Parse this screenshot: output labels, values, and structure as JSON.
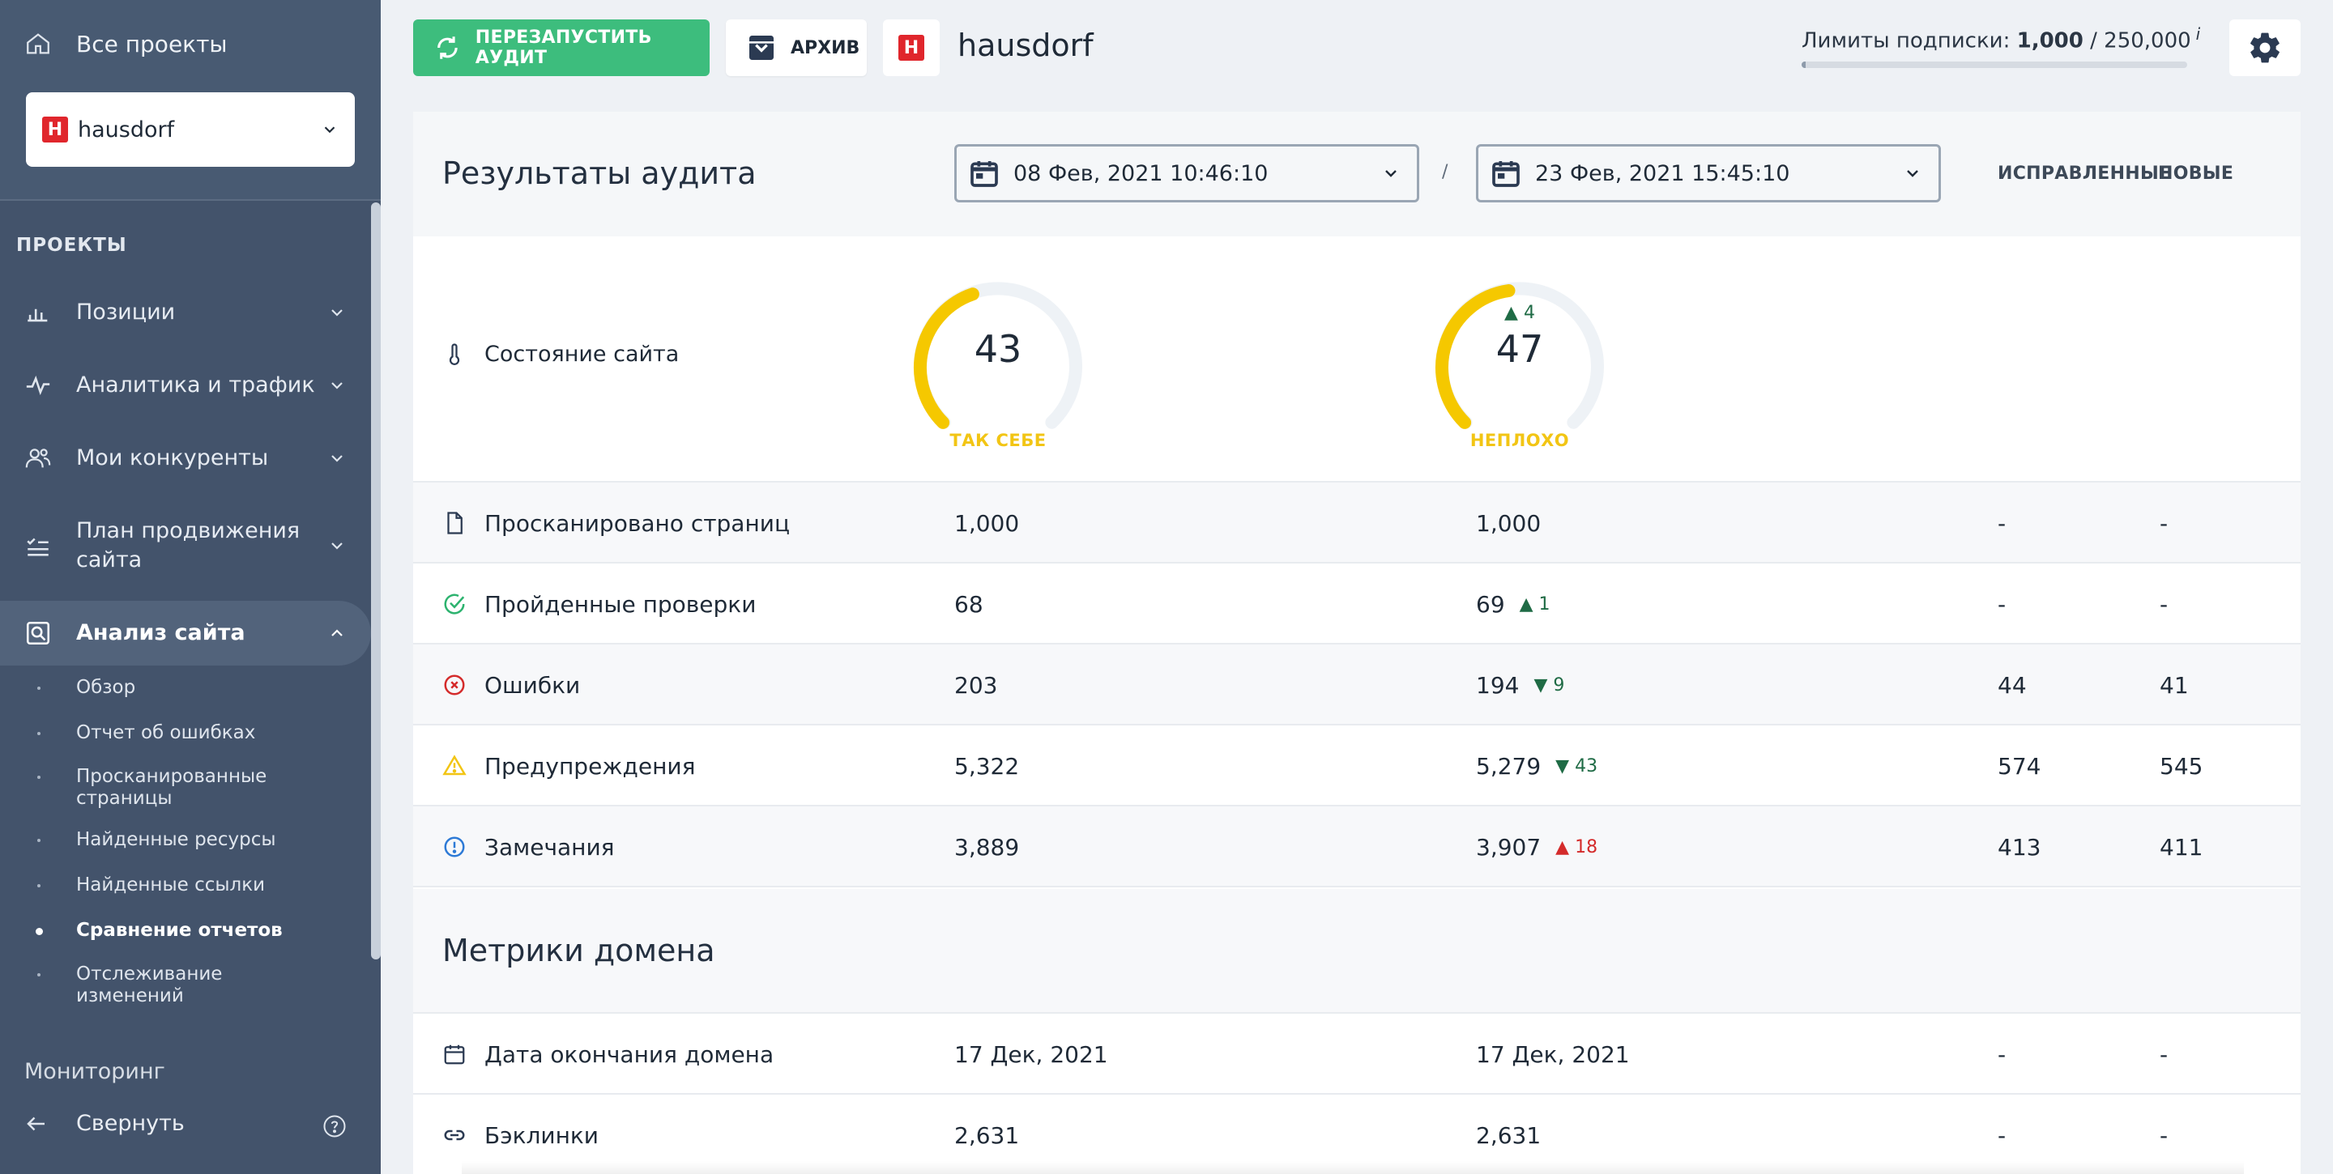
{
  "sidebar": {
    "all_projects": "Все проекты",
    "project_name": "hausdorf",
    "logo_letter": "H",
    "section_label": "ПРОЕКТЫ",
    "nav": [
      {
        "label": "Позиции",
        "icon": "bar-chart-icon"
      },
      {
        "label": "Аналитика и трафик",
        "icon": "pulse-icon"
      },
      {
        "label": "Мои конкуренты",
        "icon": "users-icon"
      },
      {
        "label": "План продвижения сайта",
        "icon": "checklist-icon"
      },
      {
        "label": "Анализ сайта",
        "icon": "search-page-icon"
      }
    ],
    "sub_items": [
      "Обзор",
      "Отчет об ошибках",
      "Просканированные страницы",
      "Найденные ресурсы",
      "Найденные ссылки",
      "Сравнение отчетов",
      "Отслеживание изменений"
    ],
    "monitoring": "Мониторинг",
    "collapse": "Свернуть"
  },
  "topbar": {
    "restart_label": "ПЕРЕЗАПУСТИТЬ АУДИТ",
    "archive_label": "АРХИВ",
    "project_title": "hausdorf",
    "limits_label": "Лимиты подписки:",
    "limits_used": "1,000",
    "limits_total": "/ 250,000",
    "limits_info": "i",
    "limits_fraction": 0.004
  },
  "audit": {
    "title": "Результаты аудита",
    "date_from": "08 Фев, 2021 10:46:10",
    "date_sep": "/",
    "date_to": "23 Фев, 2021 15:45:10",
    "col_fixed": "ИСПРАВЛЕННЫЕ",
    "col_new": "НОВЫЕ",
    "health_label": "Состояние сайта",
    "gauge1": {
      "value": "43",
      "status": "ТАК СЕБЕ",
      "score": 43
    },
    "gauge2": {
      "value": "47",
      "delta": "▲ 4",
      "status": "НЕПЛОХО",
      "score": 47
    },
    "rows": [
      {
        "label": "Просканировано страниц",
        "icon": "file-icon",
        "a": "1,000",
        "b": "1,000",
        "delta": "",
        "fixed": "-",
        "new": "-"
      },
      {
        "label": "Пройденные проверки",
        "icon": "check-circle-icon",
        "a": "68",
        "b": "69",
        "delta": "▲ 1",
        "fixed": "-",
        "new": "-"
      },
      {
        "label": "Ошибки",
        "icon": "error-circle-icon",
        "a": "203",
        "b": "194",
        "delta": "▼ 9",
        "fixed": "44",
        "new": "41"
      },
      {
        "label": "Предупреждения",
        "icon": "warning-triangle-icon",
        "a": "5,322",
        "b": "5,279",
        "delta": "▼ 43",
        "fixed": "574",
        "new": "545"
      },
      {
        "label": "Замечания",
        "icon": "info-circle-icon",
        "a": "3,889",
        "b": "3,907",
        "delta": "▲ 18",
        "fixed": "413",
        "new": "411"
      }
    ]
  },
  "domain": {
    "title": "Метрики домена",
    "rows": [
      {
        "label": "Дата окончания домена",
        "icon": "calendar-icon",
        "a": "17 Дек, 2021",
        "b": "17 Дек, 2021",
        "fixed": "-",
        "new": "-"
      },
      {
        "label": "Бэклинки",
        "icon": "link-icon",
        "a": "2,631",
        "b": "2,631",
        "fixed": "-",
        "new": "-"
      }
    ]
  }
}
